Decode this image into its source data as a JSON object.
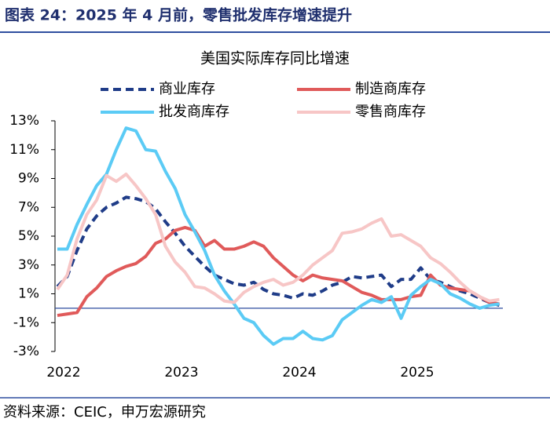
{
  "header": {
    "title": "图表 24：2025 年 4 月前，零售批发库存增速提升"
  },
  "chart_data": {
    "type": "line",
    "title": "美国实际库存同比增速",
    "categories": [
      "2022",
      null,
      null,
      null,
      null,
      null,
      null,
      null,
      null,
      null,
      null,
      null,
      "2023",
      null,
      null,
      null,
      null,
      null,
      null,
      null,
      null,
      null,
      null,
      null,
      "2024",
      null,
      null,
      null,
      null,
      null,
      null,
      null,
      null,
      null,
      null,
      null,
      "2025",
      null,
      null,
      null,
      null,
      null,
      null,
      null,
      null,
      null
    ],
    "series": [
      {
        "name": "商业库存",
        "color": "#1f3c88",
        "line_style": "dashed",
        "values": [
          1.5,
          2.2,
          4.0,
          5.5,
          6.4,
          7.0,
          7.3,
          7.7,
          7.6,
          7.4,
          6.9,
          6.0,
          5.2,
          4.3,
          3.6,
          2.9,
          2.3,
          2.0,
          1.7,
          1.6,
          1.8,
          1.3,
          1.0,
          0.9,
          0.7,
          1.0,
          0.9,
          1.2,
          1.6,
          1.8,
          2.2,
          2.1,
          2.2,
          2.3,
          1.5,
          2.0,
          2.0,
          2.8,
          2.0,
          1.8,
          1.5,
          1.2,
          1.0,
          0.7,
          0.4,
          0.2
        ]
      },
      {
        "name": "制造商库存",
        "color": "#e05a5a",
        "line_style": "solid",
        "values": [
          -0.5,
          -0.4,
          -0.3,
          0.8,
          1.4,
          2.2,
          2.6,
          2.9,
          3.1,
          3.6,
          4.5,
          4.8,
          5.4,
          5.6,
          5.4,
          4.3,
          4.7,
          4.1,
          4.1,
          4.3,
          4.6,
          4.3,
          3.5,
          2.9,
          2.3,
          1.9,
          2.3,
          2.1,
          2.0,
          1.9,
          1.5,
          1.1,
          0.9,
          0.6,
          0.6,
          0.6,
          0.8,
          0.9,
          2.3,
          1.6,
          1.4,
          1.3,
          1.2,
          0.8,
          0.4,
          0.3
        ]
      },
      {
        "name": "批发商库存",
        "color": "#5bcbf5",
        "line_style": "solid",
        "values": [
          4.1,
          4.1,
          5.8,
          7.2,
          8.5,
          9.3,
          11.0,
          12.5,
          12.3,
          11.0,
          10.9,
          9.5,
          8.3,
          6.5,
          5.3,
          4.0,
          2.3,
          1.2,
          0.3,
          -0.7,
          -1.0,
          -1.9,
          -2.5,
          -2.1,
          -2.1,
          -1.6,
          -2.1,
          -2.2,
          -1.9,
          -0.8,
          -0.3,
          0.2,
          0.6,
          0.4,
          0.8,
          -0.7,
          0.9,
          1.5,
          2.0,
          1.7,
          1.0,
          0.7,
          0.3,
          0.0,
          0.2,
          0.3
        ]
      },
      {
        "name": "零售商库存",
        "color": "#f7c6c6",
        "line_style": "solid",
        "values": [
          1.3,
          2.3,
          4.8,
          6.5,
          7.5,
          9.2,
          8.8,
          9.3,
          8.5,
          7.6,
          6.5,
          4.3,
          3.2,
          2.5,
          1.5,
          1.4,
          1.0,
          0.5,
          0.4,
          1.1,
          1.5,
          1.8,
          2.0,
          1.6,
          1.8,
          2.3,
          3.0,
          3.5,
          4.0,
          5.2,
          5.3,
          5.5,
          5.9,
          6.2,
          5.0,
          5.1,
          4.7,
          4.3,
          3.5,
          3.1,
          2.5,
          1.8,
          1.2,
          0.8,
          0.5,
          0.6
        ]
      }
    ],
    "ylim": [
      -3,
      13
    ],
    "yticks": [
      {
        "value": -3,
        "label": "-3%"
      },
      {
        "value": -1,
        "label": "-1%"
      },
      {
        "value": 1,
        "label": "1%"
      },
      {
        "value": 3,
        "label": "3%"
      },
      {
        "value": 5,
        "label": "5%"
      },
      {
        "value": 7,
        "label": "7%"
      },
      {
        "value": 9,
        "label": "9%"
      },
      {
        "value": 11,
        "label": "11%"
      },
      {
        "value": 13,
        "label": "13%"
      }
    ],
    "grid": false
  },
  "source": "资料来源：CEIC，申万宏源研究"
}
